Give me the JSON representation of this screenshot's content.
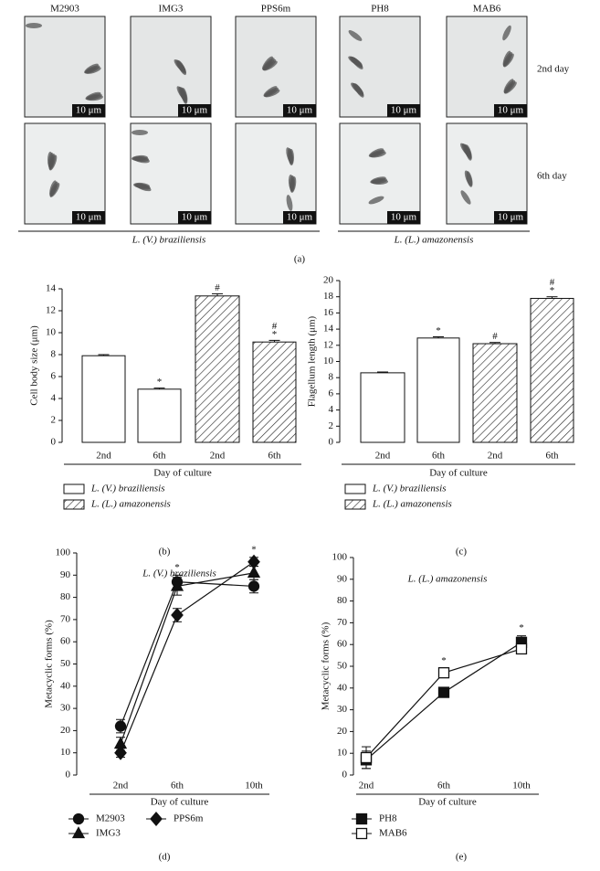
{
  "figure_a": {
    "strains": [
      "M2903",
      "IMG3",
      "PPS6m",
      "PH8",
      "MAB6"
    ],
    "days": [
      "2nd day",
      "6th day"
    ],
    "scale_bar": "10 μm",
    "groups": [
      "L. (V.) braziliensis",
      "L. (L.) amazonensis"
    ],
    "panel_label": "(a)"
  },
  "chart_data": [
    {
      "type": "bar",
      "panel_label": "(b)",
      "ylabel": "Cell body size (μm)",
      "xlabel": "Day of culture",
      "categories": [
        "2nd",
        "6th",
        "2nd",
        "6th"
      ],
      "ylim": [
        0,
        14
      ],
      "yticks": [
        0,
        2,
        4,
        6,
        8,
        10,
        12,
        14
      ],
      "series": [
        {
          "name": "L. (V.) braziliensis",
          "fill": "none",
          "values": [
            7.9,
            4.85,
            null,
            null
          ],
          "errors": [
            0.1,
            0.1,
            null,
            null
          ],
          "markers": [
            null,
            [
              "*"
            ],
            null,
            null
          ]
        },
        {
          "name": "L. (L.) amazonensis",
          "fill": "hatch",
          "values": [
            null,
            null,
            13.35,
            9.15
          ],
          "errors": [
            null,
            null,
            0.2,
            0.15
          ],
          "markers": [
            null,
            null,
            [
              "#"
            ],
            [
              "#",
              "*"
            ]
          ]
        }
      ]
    },
    {
      "type": "bar",
      "panel_label": "(c)",
      "ylabel": "Flagellum length (μm)",
      "xlabel": "Day of culture",
      "categories": [
        "2nd",
        "6th",
        "2nd",
        "6th"
      ],
      "ylim": [
        0,
        20
      ],
      "yticks": [
        0,
        2,
        4,
        6,
        8,
        10,
        12,
        14,
        16,
        18,
        20
      ],
      "series": [
        {
          "name": "L. (V.) braziliensis",
          "fill": "none",
          "values": [
            8.6,
            12.9,
            null,
            null
          ],
          "errors": [
            0.1,
            0.15,
            null,
            null
          ],
          "markers": [
            null,
            [
              "*"
            ],
            null,
            null
          ]
        },
        {
          "name": "L. (L.) amazonensis",
          "fill": "hatch",
          "values": [
            null,
            null,
            12.2,
            17.8
          ],
          "errors": [
            null,
            null,
            0.15,
            0.2
          ],
          "markers": [
            null,
            null,
            [
              "#"
            ],
            [
              "#",
              "*"
            ]
          ]
        }
      ]
    },
    {
      "type": "line",
      "panel_label": "(d)",
      "title": "L. (V.) braziliensis",
      "ylabel": "Metacyclic forms (%)",
      "xlabel": "Day of culture",
      "categories": [
        "2nd",
        "6th",
        "10th"
      ],
      "ylim": [
        0,
        100
      ],
      "yticks": [
        0,
        10,
        20,
        30,
        40,
        50,
        60,
        70,
        80,
        90,
        100
      ],
      "markers": [
        null,
        "*",
        "*"
      ],
      "series": [
        {
          "name": "M2903",
          "marker": "circle",
          "filled": true,
          "values": [
            22,
            87,
            85
          ],
          "errors": [
            3,
            3,
            3
          ]
        },
        {
          "name": "IMG3",
          "marker": "triangle",
          "filled": true,
          "values": [
            14,
            85,
            91
          ],
          "errors": [
            3,
            4,
            3
          ]
        },
        {
          "name": "PPS6m",
          "marker": "diamond",
          "filled": true,
          "values": [
            10,
            72,
            96
          ],
          "errors": [
            2,
            3,
            2
          ]
        }
      ]
    },
    {
      "type": "line",
      "panel_label": "(e)",
      "title": "L. (L.) amazonensis",
      "ylabel": "Metacyclic forms (%)",
      "xlabel": "Day of culture",
      "categories": [
        "2nd",
        "6th",
        "10th"
      ],
      "ylim": [
        0,
        100
      ],
      "yticks": [
        0,
        10,
        20,
        30,
        40,
        50,
        60,
        70,
        80,
        90,
        100
      ],
      "markers": [
        null,
        "*",
        "*"
      ],
      "series": [
        {
          "name": "PH8",
          "marker": "square",
          "filled": true,
          "values": [
            7,
            38,
            61
          ],
          "errors": [
            4,
            2,
            3
          ]
        },
        {
          "name": "MAB6",
          "marker": "square",
          "filled": false,
          "values": [
            8,
            47,
            58
          ],
          "errors": [
            5,
            2,
            2
          ]
        }
      ]
    }
  ]
}
